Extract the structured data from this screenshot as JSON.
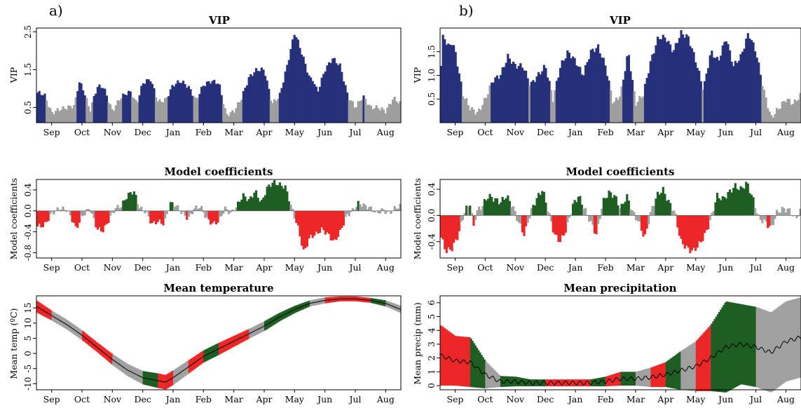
{
  "months": [
    "Sep",
    "Oct",
    "Nov",
    "Dec",
    "Jan",
    "Feb",
    "Mar",
    "Apr",
    "May",
    "Jun",
    "Jul",
    "Aug"
  ],
  "colors": {
    "vip_important": "#27307a",
    "vip_other": "#9e9e9e",
    "coef_positive": "#1f5e23",
    "coef_negative": "#ec2727",
    "coef_neutral": "#a0a0a0",
    "mean_line": "#000000"
  },
  "panels": {
    "a": {
      "label": "a)",
      "vip": {
        "title": "VIP",
        "ylabel": "VIP",
        "yticks": [
          "0.5",
          "1.5",
          "2.5"
        ]
      },
      "coef": {
        "title": "Model coefficients",
        "ylabel": "Model coefficients",
        "yticks": [
          "-0.8",
          "-0.4",
          "0.0",
          "0.4"
        ]
      },
      "climate": {
        "title": "Mean temperature",
        "ylabel": "Mean temp (ºC)",
        "yticks": [
          "-10",
          "-5",
          "0",
          "5",
          "10",
          "15"
        ]
      }
    },
    "b": {
      "label": "b)",
      "vip": {
        "title": "VIP",
        "ylabel": "VIP",
        "yticks": [
          "0.5",
          "1.0",
          "1.5"
        ]
      },
      "coef": {
        "title": "Model coefficients",
        "ylabel": "Model coefficients",
        "yticks": [
          "-0.4",
          "0.0",
          "0.4"
        ]
      },
      "climate": {
        "title": "Mean precipitation",
        "ylabel": "Mean precip (mm)",
        "yticks": [
          "0",
          "1",
          "2",
          "3",
          "4",
          "5",
          "6"
        ]
      }
    }
  },
  "chart_data": [
    {
      "panel": "a",
      "type": "bar",
      "title": "VIP",
      "ylabel": "VIP",
      "ylim": [
        0.1,
        2.6
      ],
      "threshold": 0.8,
      "x_unit": "month index (0 = start of Sep)",
      "x": [
        0.0,
        0.25,
        0.5,
        0.75,
        1.0,
        1.25,
        1.4,
        1.6,
        1.75,
        2.0,
        2.2,
        2.5,
        2.75,
        3.0,
        3.1,
        3.3,
        3.5,
        3.75,
        4.0,
        4.25,
        4.5,
        4.75,
        5.0,
        5.25,
        5.5,
        5.75,
        6.0,
        6.25,
        6.5,
        6.75,
        7.0,
        7.25,
        7.5,
        7.75,
        8.0,
        8.25,
        8.5,
        8.75,
        9.0,
        9.1,
        9.25,
        9.5,
        9.75,
        10.0,
        10.25,
        10.5,
        10.75,
        11.0,
        11.25,
        11.5,
        11.75,
        12.0
      ],
      "values": [
        0.9,
        0.85,
        0.35,
        0.45,
        0.5,
        0.55,
        1.2,
        0.85,
        0.4,
        1.05,
        1.05,
        0.4,
        0.75,
        0.9,
        0.9,
        0.6,
        1.15,
        1.25,
        0.65,
        0.7,
        1.1,
        1.2,
        1.05,
        0.7,
        1.1,
        1.2,
        1.15,
        0.3,
        0.4,
        0.75,
        1.3,
        1.5,
        1.5,
        0.6,
        0.8,
        1.6,
        2.5,
        1.9,
        1.25,
        1.25,
        0.9,
        1.5,
        1.8,
        1.6,
        0.8,
        0.5,
        0.8,
        0.5,
        0.5,
        0.4,
        0.75,
        0.6
      ]
    },
    {
      "panel": "a",
      "type": "bar",
      "title": "Model coefficients",
      "ylabel": "Model coefficients",
      "ylim": [
        -0.9,
        0.6
      ],
      "threshold": 0.15,
      "x_unit": "month index (0 = start of Sep)",
      "x": [
        0.0,
        0.25,
        0.5,
        0.75,
        1.0,
        1.2,
        1.3,
        1.5,
        1.75,
        2.0,
        2.2,
        2.4,
        2.6,
        2.8,
        3.0,
        3.2,
        3.4,
        3.6,
        3.8,
        4.0,
        4.2,
        4.4,
        4.6,
        4.8,
        5.0,
        5.2,
        5.4,
        5.6,
        5.8,
        6.0,
        6.2,
        6.4,
        6.6,
        6.8,
        7.0,
        7.2,
        7.4,
        7.6,
        7.8,
        8.0,
        8.2,
        8.4,
        8.6,
        8.8,
        9.0,
        9.2,
        9.4,
        9.6,
        9.8,
        10.0,
        10.2,
        10.4,
        10.6,
        10.8,
        11.0,
        11.2,
        11.4,
        11.6,
        11.8,
        12.0
      ],
      "values": [
        -0.3,
        -0.28,
        -0.05,
        0.05,
        0.02,
        -0.2,
        -0.35,
        -0.1,
        0.05,
        -0.35,
        -0.38,
        -0.15,
        0.05,
        0.1,
        0.3,
        0.38,
        0.05,
        -0.02,
        -0.25,
        -0.2,
        -0.25,
        0.15,
        0.1,
        -0.05,
        -0.15,
        0.05,
        0.08,
        -0.15,
        -0.25,
        -0.2,
        0.05,
        -0.05,
        0.1,
        0.3,
        0.2,
        0.38,
        0.15,
        0.45,
        0.55,
        0.5,
        0.45,
        0.05,
        -0.3,
        -0.8,
        -0.5,
        -0.45,
        -0.35,
        -0.45,
        -0.6,
        -0.4,
        -0.1,
        0.0,
        0.15,
        0.1,
        0.05,
        -0.05,
        0.02,
        -0.05,
        0.05,
        0.1
      ]
    },
    {
      "panel": "a",
      "type": "area",
      "title": "Mean temperature",
      "ylabel": "Mean temp (ºC)",
      "ylim": [
        -12,
        19
      ],
      "x_unit": "month index (0 = start of Sep)",
      "x": [
        0.0,
        0.5,
        1.0,
        1.5,
        2.0,
        2.5,
        3.0,
        3.5,
        4.0,
        4.25,
        4.5,
        5.0,
        5.5,
        6.0,
        6.5,
        7.0,
        7.5,
        8.0,
        8.5,
        9.0,
        9.5,
        10.0,
        10.5,
        11.0,
        11.5,
        12.0
      ],
      "mean": [
        15.5,
        12.5,
        9.5,
        6.0,
        2.0,
        -2.0,
        -5.5,
        -8.0,
        -9.0,
        -9.5,
        -8.0,
        -4.5,
        -1.0,
        1.5,
        4.0,
        6.5,
        9.0,
        12.0,
        14.5,
        16.5,
        17.5,
        18.0,
        18.0,
        17.5,
        16.5,
        14.5
      ],
      "spread": [
        2.0,
        1.6,
        1.6,
        1.6,
        1.6,
        1.8,
        2.0,
        2.2,
        2.4,
        2.4,
        2.4,
        2.2,
        2.0,
        2.0,
        1.8,
        1.6,
        1.6,
        1.4,
        1.2,
        1.0,
        1.0,
        0.8,
        0.8,
        0.8,
        1.0,
        1.2
      ],
      "significance": [
        "neg",
        "neu",
        "neu",
        "neg",
        "neg",
        "neu",
        "neu",
        "pos",
        "neg",
        "neg",
        "neu",
        "neg",
        "pos",
        "neg",
        "neg",
        "neu",
        "pos",
        "pos",
        "pos",
        "neu",
        "neg",
        "neg",
        "neg",
        "pos",
        "neu",
        "neg"
      ]
    },
    {
      "panel": "b",
      "type": "bar",
      "title": "VIP",
      "ylabel": "VIP",
      "ylim": [
        0.0,
        2.0
      ],
      "threshold": 0.8,
      "x_unit": "month index (0 = start of Sep)",
      "x": [
        0.0,
        0.1,
        0.25,
        0.4,
        0.5,
        0.75,
        1.0,
        1.25,
        1.5,
        1.75,
        2.0,
        2.25,
        2.5,
        2.75,
        3.0,
        3.25,
        3.5,
        3.75,
        4.0,
        4.25,
        4.5,
        4.75,
        5.0,
        5.25,
        5.5,
        5.75,
        6.0,
        6.25,
        6.5,
        6.75,
        7.0,
        7.25,
        7.5,
        7.75,
        8.0,
        8.25,
        8.5,
        8.75,
        9.0,
        9.25,
        9.5,
        9.75,
        10.0,
        10.25,
        10.5,
        10.75,
        11.0,
        11.25,
        11.5,
        11.75,
        12.0
      ],
      "values": [
        0.9,
        1.9,
        1.6,
        1.7,
        1.5,
        0.6,
        0.3,
        0.2,
        0.5,
        0.9,
        1.0,
        1.4,
        1.2,
        1.2,
        0.8,
        1.0,
        1.2,
        0.5,
        1.2,
        1.5,
        1.3,
        1.0,
        1.5,
        1.6,
        1.2,
        0.4,
        0.6,
        1.5,
        0.4,
        0.6,
        1.3,
        1.8,
        1.8,
        1.5,
        1.9,
        1.8,
        1.3,
        0.7,
        1.5,
        1.3,
        1.8,
        1.2,
        1.4,
        1.9,
        1.5,
        0.7,
        0.1,
        0.3,
        0.5,
        0.4,
        0.6
      ]
    },
    {
      "panel": "b",
      "type": "bar",
      "title": "Model coefficients",
      "ylabel": "Model coefficients",
      "ylim": [
        -0.65,
        0.55
      ],
      "threshold": 0.15,
      "x_unit": "month index (0 = start of Sep)",
      "x": [
        0.0,
        0.2,
        0.4,
        0.6,
        0.8,
        1.0,
        1.1,
        1.2,
        1.4,
        1.6,
        1.8,
        2.0,
        2.2,
        2.4,
        2.6,
        2.8,
        3.0,
        3.2,
        3.4,
        3.6,
        3.8,
        4.0,
        4.2,
        4.4,
        4.6,
        4.8,
        5.0,
        5.2,
        5.4,
        5.6,
        5.8,
        6.0,
        6.2,
        6.4,
        6.6,
        6.8,
        7.0,
        7.2,
        7.4,
        7.6,
        7.8,
        8.0,
        8.2,
        8.4,
        8.6,
        8.8,
        9.0,
        9.2,
        9.4,
        9.6,
        9.8,
        10.0,
        10.2,
        10.4,
        10.6,
        10.8,
        11.0,
        11.2,
        11.4,
        11.6,
        11.8,
        12.0
      ],
      "values": [
        -0.3,
        -0.55,
        -0.5,
        -0.3,
        0.05,
        0.2,
        -0.2,
        0.05,
        0.15,
        0.3,
        0.25,
        0.2,
        0.3,
        0.15,
        -0.1,
        -0.3,
        0.05,
        0.25,
        0.4,
        0.05,
        -0.3,
        -0.4,
        -0.2,
        0.15,
        0.3,
        0.1,
        -0.1,
        -0.3,
        0.2,
        0.35,
        0.3,
        0.1,
        0.3,
        0.05,
        -0.1,
        -0.35,
        0.05,
        0.3,
        0.4,
        0.2,
        0.05,
        -0.4,
        -0.5,
        -0.55,
        -0.45,
        -0.3,
        -0.05,
        0.3,
        0.25,
        0.35,
        0.45,
        0.4,
        0.5,
        0.25,
        -0.05,
        -0.1,
        -0.2,
        0.05,
        0.1,
        0.08,
        -0.05,
        0.08
      ]
    },
    {
      "panel": "b",
      "type": "area",
      "title": "Mean precipitation",
      "ylabel": "Mean precip (mm)",
      "ylim": [
        -0.3,
        6.5
      ],
      "x_unit": "month index (0 = start of Sep)",
      "x": [
        0.0,
        0.5,
        1.0,
        1.5,
        2.0,
        2.5,
        3.0,
        3.5,
        4.0,
        4.5,
        5.0,
        5.5,
        6.0,
        6.5,
        7.0,
        7.5,
        8.0,
        8.5,
        9.0,
        9.5,
        10.0,
        10.5,
        11.0,
        11.5,
        12.0
      ],
      "mean": [
        2.2,
        1.8,
        1.7,
        0.8,
        0.3,
        0.3,
        0.2,
        0.2,
        0.2,
        0.2,
        0.2,
        0.3,
        0.5,
        0.5,
        0.6,
        0.8,
        1.1,
        1.4,
        2.0,
        2.8,
        3.0,
        2.8,
        2.4,
        3.2,
        3.5
      ],
      "spread": [
        2.2,
        1.8,
        1.8,
        1.0,
        0.4,
        0.35,
        0.25,
        0.25,
        0.25,
        0.25,
        0.25,
        0.35,
        0.5,
        0.5,
        0.7,
        0.9,
        1.4,
        1.8,
        2.4,
        3.3,
        2.9,
        2.9,
        2.9,
        2.9,
        2.9
      ],
      "significance": [
        "neg",
        "neg",
        "pos",
        "neu",
        "pos",
        "pos",
        "pos",
        "neg",
        "neg",
        "neg",
        "pos",
        "neg",
        "pos",
        "neu",
        "neg",
        "pos",
        "neu",
        "neg",
        "pos",
        "pos",
        "pos",
        "neu",
        "neu",
        "neu",
        "neu"
      ]
    }
  ]
}
